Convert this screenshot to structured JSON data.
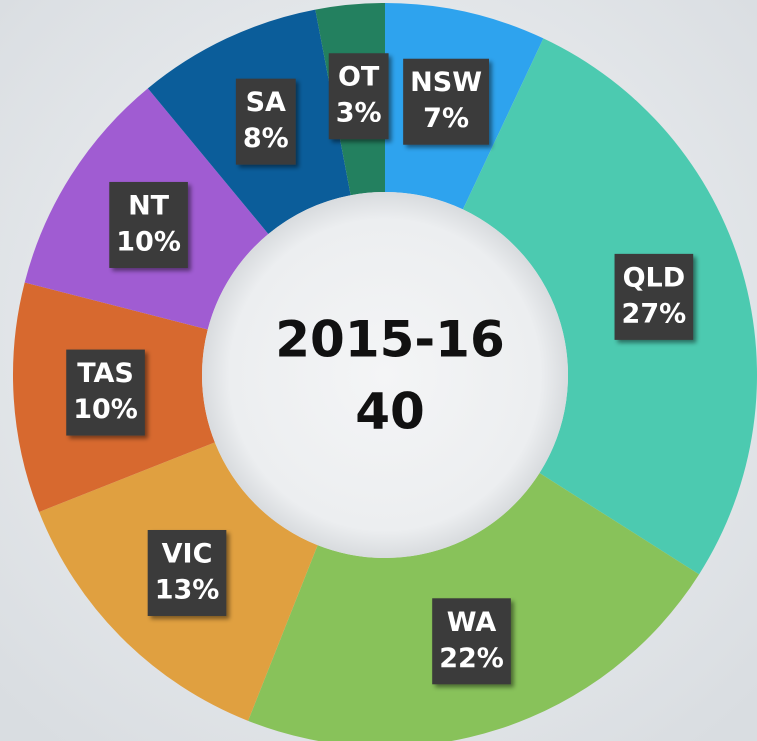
{
  "chart_data": {
    "type": "donut",
    "title": "2015-16",
    "center_value": 40,
    "categories": [
      "NSW",
      "QLD",
      "WA",
      "VIC",
      "TAS",
      "NT",
      "SA",
      "OT"
    ],
    "values": [
      7,
      27,
      22,
      13,
      10,
      10,
      8,
      3
    ],
    "value_labels": [
      "7%",
      "27%",
      "22%",
      "13%",
      "10%",
      "10%",
      "8%",
      "3%"
    ],
    "colors": [
      "#2ea3ee",
      "#4ccab0",
      "#88c25a",
      "#e0a040",
      "#d7692f",
      "#a05cd2",
      "#0b5d9a",
      "#23805f"
    ]
  }
}
